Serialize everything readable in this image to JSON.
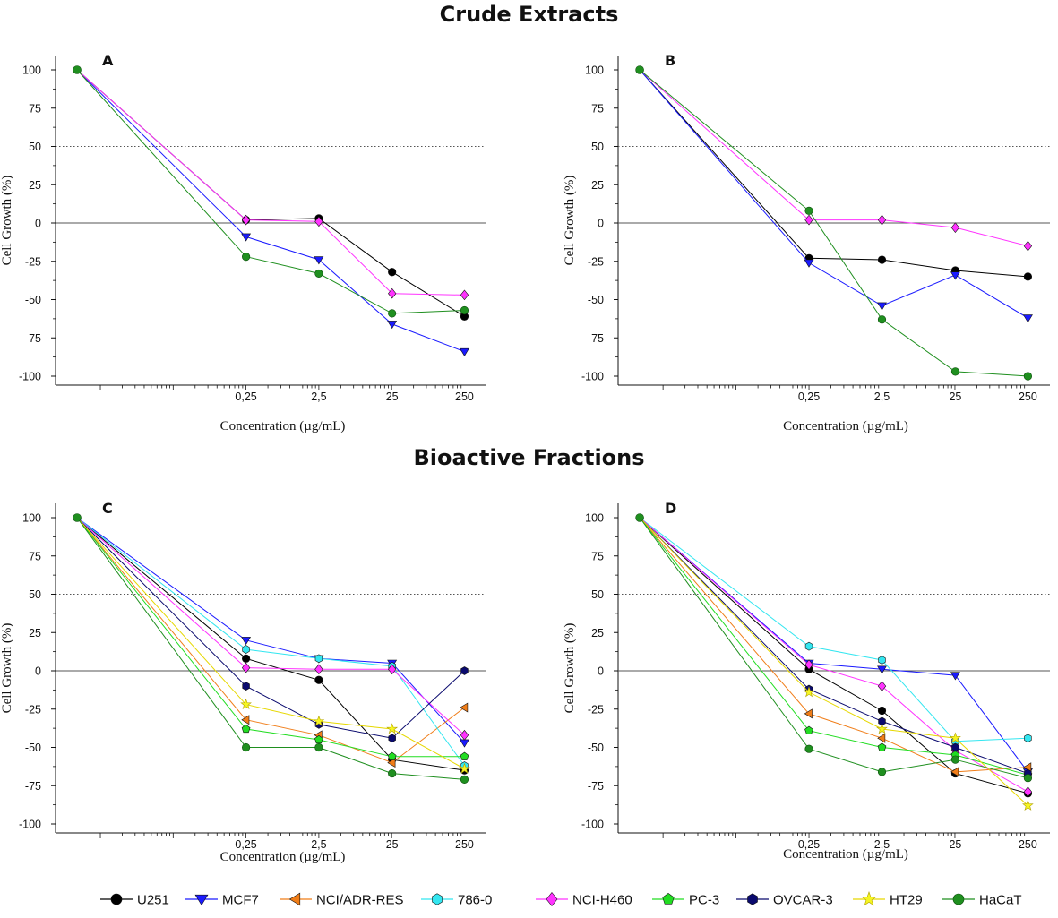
{
  "section_titles": [
    "Crude Extracts",
    "Bioactive Fractions"
  ],
  "legend": {
    "items": [
      {
        "name": "U251",
        "marker": "circle",
        "color": "#000000"
      },
      {
        "name": "MCF7",
        "marker": "triangle-down",
        "color": "#1a1aff"
      },
      {
        "name": "NCI/ADR-RES",
        "marker": "triangle-left",
        "color": "#f07d18"
      },
      {
        "name": "786-0",
        "marker": "hexagon",
        "color": "#33e6f0"
      },
      {
        "name": "NCI-H460",
        "marker": "diamond",
        "color": "#ff33ff"
      },
      {
        "name": "PC-3",
        "marker": "pentagon",
        "color": "#22dd22"
      },
      {
        "name": "OVCAR-3",
        "marker": "hexagon",
        "color": "#0a0a6e"
      },
      {
        "name": "HT29",
        "marker": "star",
        "color": "#f5f522"
      },
      {
        "name": "HaCaT",
        "marker": "sphere",
        "color": "#1f8f1f"
      }
    ]
  },
  "chart_data": [
    {
      "type": "line",
      "panel": "A",
      "ylabel": "Cell Growth (%)",
      "xlabel": "Concentration (µg/mL)",
      "x": [
        "0",
        "0,25",
        "2,5",
        "25",
        "250"
      ],
      "ylim": [
        -100,
        100
      ],
      "yticks": [
        "100",
        "75",
        "50",
        "25",
        "0",
        "-25",
        "-50",
        "-75",
        "-100"
      ],
      "series": [
        {
          "name": "U251",
          "values": [
            100,
            2,
            3,
            -32,
            -61
          ]
        },
        {
          "name": "MCF7",
          "values": [
            100,
            -9,
            -24,
            -66,
            -84
          ]
        },
        {
          "name": "NCI-H460",
          "values": [
            100,
            2,
            1,
            -46,
            -47
          ]
        },
        {
          "name": "HaCaT",
          "values": [
            100,
            -22,
            -33,
            -59,
            -57
          ]
        }
      ]
    },
    {
      "type": "line",
      "panel": "B",
      "ylabel": "Cell Growth (%)",
      "xlabel": "Concentration (µg/mL)",
      "x": [
        "0",
        "0,25",
        "2,5",
        "25",
        "250"
      ],
      "ylim": [
        -100,
        100
      ],
      "yticks": [
        "100",
        "75",
        "50",
        "25",
        "0",
        "-25",
        "-50",
        "-75",
        "-100"
      ],
      "series": [
        {
          "name": "U251",
          "values": [
            100,
            -23,
            -24,
            -31,
            -35
          ]
        },
        {
          "name": "MCF7",
          "values": [
            100,
            -26,
            -54,
            -34,
            -62
          ]
        },
        {
          "name": "NCI-H460",
          "values": [
            100,
            2,
            2,
            -3,
            -15
          ]
        },
        {
          "name": "HaCaT",
          "values": [
            100,
            8,
            -63,
            -97,
            -100
          ]
        }
      ]
    },
    {
      "type": "line",
      "panel": "C",
      "ylabel": "Cell Growth (%)",
      "xlabel": "Concentration (µg/mL)",
      "x": [
        "0",
        "0,25",
        "2,5",
        "25",
        "250"
      ],
      "ylim": [
        -100,
        100
      ],
      "yticks": [
        "100",
        "75",
        "50",
        "25",
        "0",
        "-25",
        "-50",
        "-75",
        "-100"
      ],
      "series": [
        {
          "name": "U251",
          "values": [
            100,
            8,
            -6,
            -58,
            -65
          ]
        },
        {
          "name": "MCF7",
          "values": [
            100,
            20,
            8,
            5,
            -47
          ]
        },
        {
          "name": "NCI/ADR-RES",
          "values": [
            100,
            -32,
            -42,
            -60,
            -24
          ]
        },
        {
          "name": "786-0",
          "values": [
            100,
            14,
            8,
            3,
            -62
          ]
        },
        {
          "name": "NCI-H460",
          "values": [
            100,
            2,
            1,
            1,
            -42
          ]
        },
        {
          "name": "PC-3",
          "values": [
            100,
            -38,
            -45,
            -56,
            -56
          ]
        },
        {
          "name": "OVCAR-3",
          "values": [
            100,
            -10,
            -35,
            -44,
            0
          ]
        },
        {
          "name": "HT29",
          "values": [
            100,
            -22,
            -33,
            -38,
            -64
          ]
        },
        {
          "name": "HaCaT",
          "values": [
            100,
            -50,
            -50,
            -67,
            -71
          ]
        }
      ]
    },
    {
      "type": "line",
      "panel": "D",
      "ylabel": "Cell Growth (%)",
      "xlabel": "Concentration (µg/mL)",
      "x": [
        "0",
        "0,25",
        "2,5",
        "25",
        "250"
      ],
      "ylim": [
        -100,
        100
      ],
      "yticks": [
        "100",
        "75",
        "50",
        "25",
        "0",
        "-25",
        "-50",
        "-75",
        "-100"
      ],
      "series": [
        {
          "name": "U251",
          "values": [
            100,
            1,
            -26,
            -67,
            -80
          ]
        },
        {
          "name": "MCF7",
          "values": [
            100,
            5,
            1,
            -3,
            -66
          ]
        },
        {
          "name": "NCI/ADR-RES",
          "values": [
            100,
            -28,
            -44,
            -66,
            -63
          ]
        },
        {
          "name": "786-0",
          "values": [
            100,
            16,
            7,
            -46,
            -44
          ]
        },
        {
          "name": "NCI-H460",
          "values": [
            100,
            4,
            -10,
            -52,
            -79
          ]
        },
        {
          "name": "PC-3",
          "values": [
            100,
            -39,
            -50,
            -55,
            -68
          ]
        },
        {
          "name": "OVCAR-3",
          "values": [
            100,
            -12,
            -33,
            -50,
            -67
          ]
        },
        {
          "name": "HT29",
          "values": [
            100,
            -14,
            -38,
            -44,
            -88
          ]
        },
        {
          "name": "HaCaT",
          "values": [
            100,
            -51,
            -66,
            -58,
            -70
          ]
        }
      ]
    }
  ]
}
